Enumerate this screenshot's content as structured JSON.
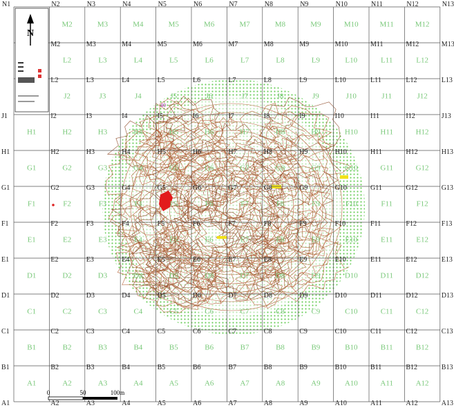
{
  "header": [
    "N1",
    "N2",
    "N3",
    "N4",
    "N5",
    "N6",
    "N7",
    "N8",
    "N9",
    "N10",
    "N11",
    "N12",
    "N13"
  ],
  "rows": [
    {
      "cells": [
        "M2",
        "M3",
        "M4",
        "M5",
        "M6",
        "M7",
        "M8",
        "M9",
        "M10",
        "M11",
        "M12"
      ],
      "edge": [
        "M2",
        "M3",
        "M4",
        "M5",
        "M6",
        "M7",
        "M8",
        "M9",
        "M10",
        "M11",
        "M12",
        "M13"
      ]
    },
    {
      "cells": [
        "L2",
        "L3",
        "L4",
        "L5",
        "L6",
        "L7",
        "L8",
        "L9",
        "L10",
        "L11",
        "L12"
      ],
      "edge": [
        "L2",
        "L3",
        "L4",
        "L5",
        "L6",
        "L7",
        "L8",
        "L9",
        "L10",
        "L11",
        "L12",
        "L13"
      ]
    },
    {
      "cells": [
        "J2",
        "J3",
        "J4",
        "J5",
        "J6",
        "J7",
        "J8",
        "J9",
        "J10",
        "J11",
        "J12"
      ],
      "edge": [
        "J1",
        "I2",
        "I3",
        "I4",
        "I5",
        "I6",
        "I7",
        "I8",
        "I9",
        "I10",
        "I11",
        "I12",
        "J13"
      ]
    },
    {
      "cells": [
        "H1",
        "H2",
        "H3",
        "H4",
        "H5",
        "H6",
        "H7",
        "H8",
        "H9",
        "H10",
        "H11",
        "H12"
      ],
      "edge": [
        "H1",
        "H2",
        "H3",
        "H4",
        "H5",
        "H6",
        "H7",
        "H8",
        "H9",
        "H10",
        "H11",
        "H12",
        "H13"
      ]
    },
    {
      "cells": [
        "G1",
        "G2",
        "G3",
        "G4",
        "G5",
        "G6",
        "G7",
        "G8",
        "G9",
        "G10",
        "G11",
        "G12"
      ],
      "edge": [
        "G1",
        "G2",
        "G3",
        "G4",
        "G5",
        "G6",
        "G7",
        "G8",
        "G9",
        "G10",
        "G11",
        "G12",
        "G13"
      ]
    },
    {
      "cells": [
        "F1",
        "F2",
        "F3",
        "F4",
        "F5",
        "F6",
        "F7",
        "F8",
        "F9",
        "F10",
        "F11",
        "F12"
      ],
      "edge": [
        "F1",
        "F2",
        "F3",
        "F4",
        "F5",
        "F6",
        "F7",
        "F8",
        "F9",
        "F10",
        "F11",
        "F12",
        "F13"
      ]
    },
    {
      "cells": [
        "E1",
        "E2",
        "E3",
        "E4",
        "E5",
        "E6",
        "E7",
        "E8",
        "E9",
        "E10",
        "E11",
        "E12"
      ],
      "edge": [
        "E1",
        "E2",
        "E3",
        "E4",
        "E5",
        "E6",
        "E7",
        "E8",
        "E9",
        "E10",
        "E11",
        "E12",
        "E13"
      ]
    },
    {
      "cells": [
        "D1",
        "D2",
        "D3",
        "D4",
        "D5",
        "D6",
        "D7",
        "D8",
        "D9",
        "D10",
        "D11",
        "D12"
      ],
      "edge": [
        "D1",
        "D2",
        "D3",
        "D4",
        "D5",
        "D6",
        "D7",
        "D8",
        "D9",
        "D10",
        "D11",
        "D12",
        "D13"
      ]
    },
    {
      "cells": [
        "C1",
        "C2",
        "C3",
        "C4",
        "C5",
        "C6",
        "C7",
        "C8",
        "C9",
        "C10",
        "C11",
        "C12"
      ],
      "edge": [
        "C1",
        "C2",
        "C3",
        "C4",
        "C5",
        "C6",
        "C7",
        "C8",
        "C9",
        "C10",
        "C11",
        "C12",
        "C13"
      ]
    },
    {
      "cells": [
        "B1",
        "B2",
        "B3",
        "B4",
        "B5",
        "B6",
        "B7",
        "B8",
        "B9",
        "B10",
        "B11",
        "B12"
      ],
      "edge": [
        "B1",
        "B2",
        "B3",
        "B4",
        "B5",
        "B6",
        "B7",
        "B8",
        "B9",
        "B10",
        "B11",
        "B12",
        "B13"
      ]
    },
    {
      "cells": [
        "A1",
        "A2",
        "A3",
        "A4",
        "A5",
        "A6",
        "A7",
        "A8",
        "A9",
        "A10",
        "A11",
        "A12"
      ],
      "edge": [
        "A1",
        "A2",
        "A3",
        "A4",
        "A5",
        "A6",
        "A7",
        "A8",
        "A9",
        "A10",
        "A11",
        "A12",
        "A13"
      ]
    }
  ],
  "north": "N",
  "annotation": "40",
  "scale": [
    "0",
    "50",
    "100m"
  ]
}
